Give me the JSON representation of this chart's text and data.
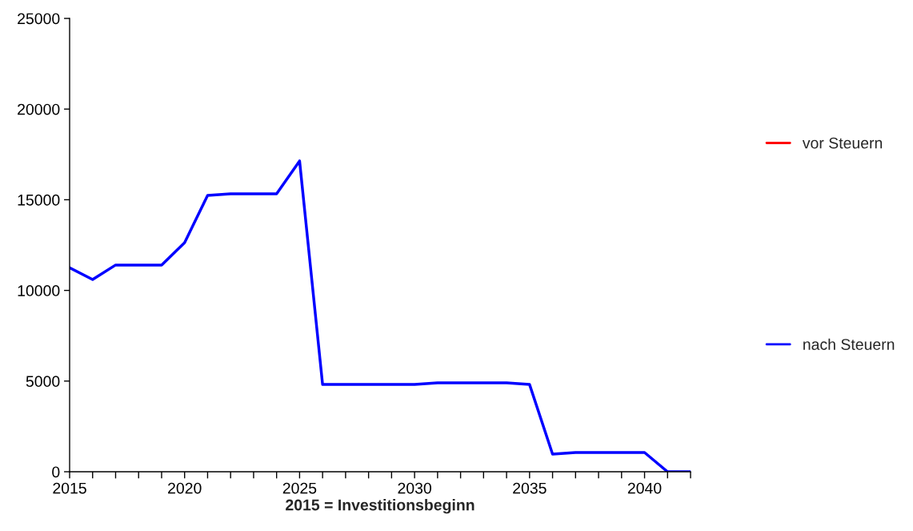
{
  "chart_data": {
    "type": "line",
    "xlabel": "2015 = Investitionsbeginn",
    "x": [
      2015,
      2016,
      2017,
      2018,
      2019,
      2020,
      2021,
      2022,
      2023,
      2024,
      2025,
      2026,
      2027,
      2028,
      2029,
      2030,
      2031,
      2032,
      2033,
      2034,
      2035,
      2036,
      2037,
      2038,
      2039,
      2040,
      2041,
      2042
    ],
    "series": [
      {
        "name": "vor Steuern",
        "color": "#ff0000",
        "values": [
          null,
          null,
          null,
          null,
          null,
          null,
          null,
          null,
          null,
          null,
          null,
          null,
          null,
          null,
          null,
          null,
          null,
          null,
          null,
          null,
          null,
          null,
          null,
          null,
          null,
          null,
          null,
          null
        ]
      },
      {
        "name": "nach Steuern",
        "color": "#0000ff",
        "values": [
          11250,
          10600,
          11400,
          11400,
          11400,
          12630,
          15240,
          15330,
          15330,
          15330,
          17140,
          4810,
          4810,
          4810,
          4810,
          4810,
          4900,
          4900,
          4900,
          4900,
          4810,
          970,
          1060,
          1060,
          1060,
          1060,
          0,
          0
        ]
      }
    ],
    "xlim": [
      2015,
      2042
    ],
    "xticks": [
      2015,
      {
        "value": 2016,
        "label": null
      },
      {
        "value": 2017,
        "label": null
      },
      {
        "value": 2018,
        "label": null
      },
      {
        "value": 2019,
        "label": null
      },
      2020,
      {
        "value": 2021,
        "label": null
      },
      {
        "value": 2022,
        "label": null
      },
      {
        "value": 2023,
        "label": null
      },
      {
        "value": 2024,
        "label": null
      },
      2025,
      {
        "value": 2026,
        "label": null
      },
      {
        "value": 2027,
        "label": null
      },
      {
        "value": 2028,
        "label": null
      },
      {
        "value": 2029,
        "label": null
      },
      2030,
      {
        "value": 2031,
        "label": null
      },
      {
        "value": 2032,
        "label": null
      },
      {
        "value": 2033,
        "label": null
      },
      {
        "value": 2034,
        "label": null
      },
      2035,
      {
        "value": 2036,
        "label": null
      },
      {
        "value": 2037,
        "label": null
      },
      {
        "value": 2038,
        "label": null
      },
      {
        "value": 2039,
        "label": null
      },
      2040,
      {
        "value": 2041,
        "label": null
      },
      {
        "value": 2042,
        "label": null
      }
    ],
    "ylim": [
      0,
      25000
    ],
    "yticks": [
      0,
      5000,
      10000,
      15000,
      20000,
      25000
    ],
    "grid": false,
    "legend": "right",
    "marker": "none",
    "line_style": "solid"
  }
}
